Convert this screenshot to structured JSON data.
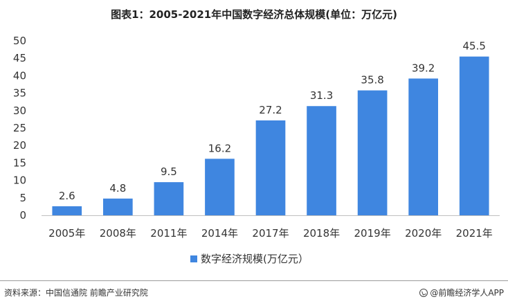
{
  "title": "图表1：2005-2021年中国数字经济总体规模(单位：万亿元)",
  "colors": {
    "bar": "#3f86e0",
    "axis": "#bfbfbf",
    "text": "#333333"
  },
  "chart_data": {
    "type": "bar",
    "categories": [
      "2005年",
      "2008年",
      "2011年",
      "2014年",
      "2017年",
      "2018年",
      "2019年",
      "2020年",
      "2021年"
    ],
    "series": [
      {
        "name": "数字经济规模(万亿元）",
        "values": [
          2.6,
          4.8,
          9.5,
          16.2,
          27.2,
          31.3,
          35.8,
          39.2,
          45.5
        ]
      }
    ],
    "data_labels": [
      "2.6",
      "4.8",
      "9.5",
      "16.2",
      "27.2",
      "31.3",
      "35.8",
      "39.2",
      "45.5"
    ],
    "ylim": [
      0,
      50
    ],
    "yticks": [
      "0",
      "5",
      "10",
      "15",
      "20",
      "25",
      "30",
      "35",
      "40",
      "45",
      "50"
    ],
    "grid": false,
    "legend_position": "bottom"
  },
  "footer": {
    "source": "资料来源：中国信通院 前瞻产业研究院",
    "brand": "@前瞻经济学人APP"
  }
}
